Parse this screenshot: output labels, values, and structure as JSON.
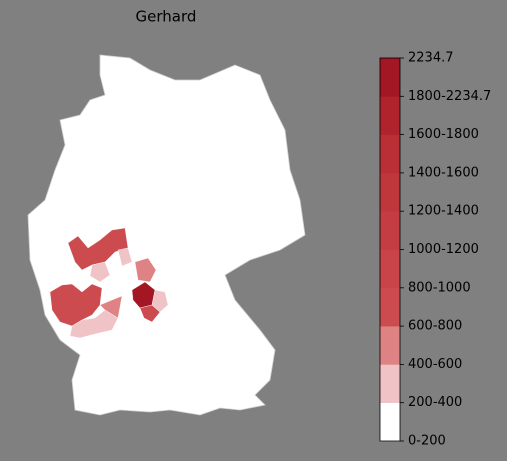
{
  "title": "Gerhard",
  "legend": {
    "labels": [
      "0-200",
      "200-400",
      "400-600",
      "600-800",
      "800-1000",
      "1000-1200",
      "1200-1400",
      "1400-1600",
      "1600-1800",
      "1800-2234.7",
      "2234.7"
    ],
    "colors": [
      "#ffffff",
      "#f0c4c6",
      "#de8284",
      "#cc4b4f",
      "#c84448",
      "#c43d42",
      "#bf363b",
      "#b92f35",
      "#b0232c",
      "#a31623"
    ]
  }
}
